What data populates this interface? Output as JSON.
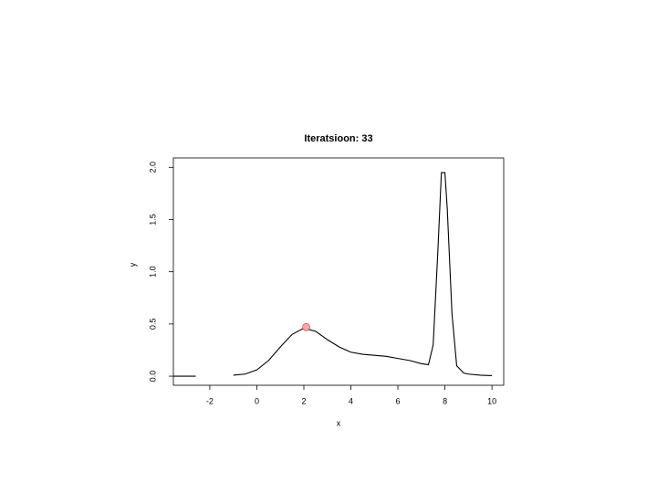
{
  "chart_data": {
    "type": "line",
    "title": "Iteratsioon: 33",
    "x_label": "x",
    "y_label": "y",
    "xlim": [
      -3.55,
      10.5
    ],
    "ylim": [
      -0.087,
      2.09
    ],
    "xticks": [
      -2,
      0,
      2,
      4,
      6,
      8,
      10
    ],
    "yticks": [
      {
        "value": 0,
        "label": "0.0"
      },
      0.5,
      {
        "value": 1,
        "label": "1.0"
      },
      1.5,
      {
        "value": 2,
        "label": "2.0"
      }
    ],
    "series": [
      {
        "style": "line",
        "color": "#000000",
        "x": [
          -1,
          -0.5,
          0,
          0.5,
          1,
          1.5,
          2,
          2.5,
          3,
          3.5,
          4,
          4.5,
          5,
          5.5,
          6,
          6.5,
          7,
          7.3,
          7.5,
          7.7,
          7.85,
          8,
          8.1,
          8.3,
          8.5,
          8.8,
          9,
          9.5,
          10
        ],
        "values": [
          0.01,
          0.02,
          0.06,
          0.15,
          0.28,
          0.4,
          0.46,
          0.43,
          0.35,
          0.28,
          0.23,
          0.21,
          0.2,
          0.19,
          0.17,
          0.15,
          0.12,
          0.11,
          0.3,
          1.2,
          1.95,
          1.95,
          1.6,
          0.6,
          0.1,
          0.03,
          0.02,
          0.01,
          0.005
        ]
      },
      {
        "style": "line",
        "color": "#000000",
        "x": [
          -3.55,
          -2.6
        ],
        "values": [
          0,
          0
        ]
      },
      {
        "style": "point",
        "color": "#f4a6a6",
        "x": [
          2.1
        ],
        "values": [
          0.47
        ]
      }
    ]
  }
}
